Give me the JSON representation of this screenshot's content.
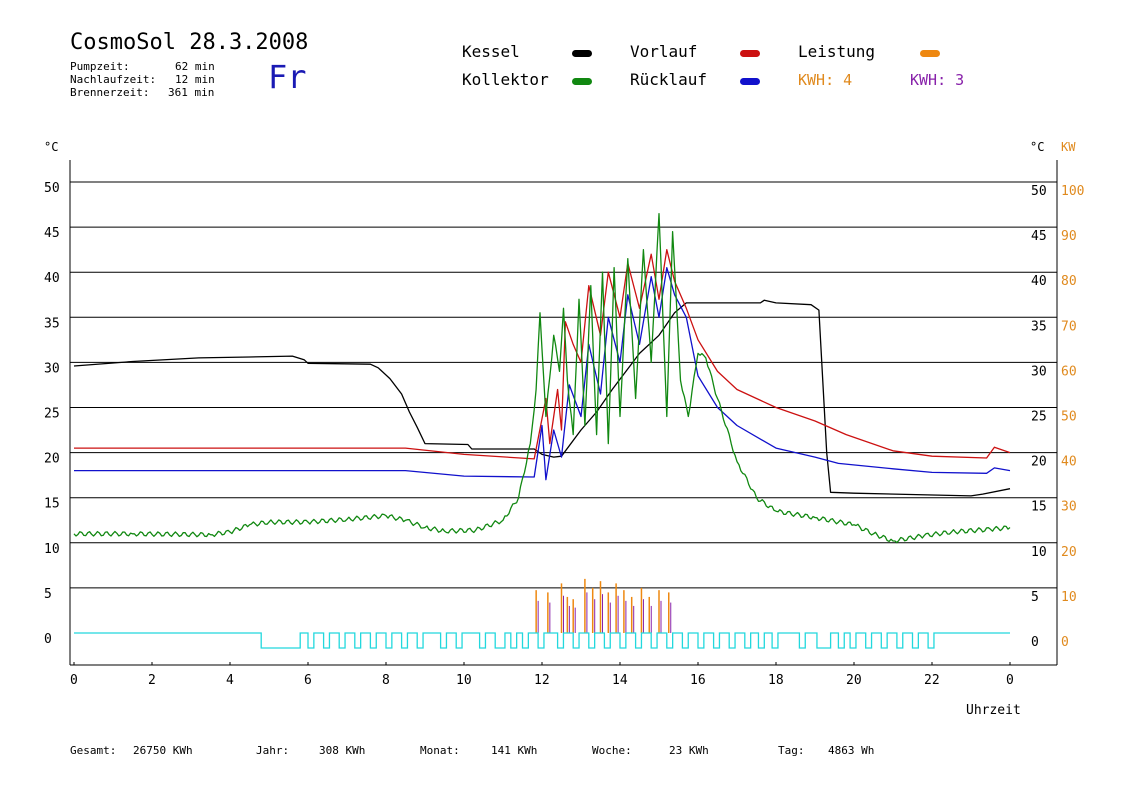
{
  "header": {
    "title": "CosmoSol 28.3.2008",
    "pump_label": "Pumpzeit:",
    "pump_value": "62 min",
    "nachlauf_label": "Nachlaufzeit:",
    "nachlauf_value": "12 min",
    "brenner_label": "Brennerzeit:",
    "brenner_value": "361 min",
    "weekday": "Fr"
  },
  "legend": {
    "kessel": "Kessel",
    "kollektor": "Kollektor",
    "vorlauf": "Vorlauf",
    "ruecklauf": "Rücklauf",
    "leistung": "Leistung",
    "kwh_orange": "KWH: 4",
    "kwh_purple": "KWH: 3"
  },
  "axes": {
    "left_unit": "°C",
    "right_unit": "°C",
    "right_kw_unit": "KW",
    "x_label": "Uhrzeit"
  },
  "footer": {
    "gesamt_label": "Gesamt:",
    "gesamt_value": "26750 KWh",
    "jahr_label": "Jahr:",
    "jahr_value": "308 KWh",
    "monat_label": "Monat:",
    "monat_value": "141 KWh",
    "woche_label": "Woche:",
    "woche_value": "23 KWh",
    "tag_label": "Tag:",
    "tag_value": "4863 Wh"
  },
  "colors": {
    "kessel": "#000000",
    "kollektor": "#118811",
    "vorlauf": "#cc1111",
    "ruecklauf": "#1111cc",
    "leistung": "#ee8811",
    "kwh_purple": "#8822aa",
    "pump": "#22d8dd",
    "kw_axis": "#e08a1e"
  },
  "chart_data": {
    "type": "line",
    "xlabel": "Uhrzeit",
    "ylabel": "°C",
    "xlim": [
      0,
      24
    ],
    "ylim": [
      0,
      50
    ],
    "y2lim": [
      0,
      100
    ],
    "y2label": "KW",
    "x_ticks": [
      "0",
      "2",
      "4",
      "6",
      "8",
      "10",
      "12",
      "14",
      "16",
      "18",
      "20",
      "22",
      "0"
    ],
    "y_ticks": [
      "0",
      "5",
      "10",
      "15",
      "20",
      "25",
      "30",
      "35",
      "40",
      "45",
      "50"
    ],
    "y2_ticks": [
      "0",
      "10",
      "20",
      "30",
      "40",
      "50",
      "60",
      "70",
      "80",
      "90",
      "100"
    ],
    "grid": true,
    "series": [
      {
        "name": "Kessel",
        "color": "#000000",
        "points": [
          [
            0,
            29.6
          ],
          [
            1.5,
            30.1
          ],
          [
            3.2,
            30.5
          ],
          [
            4.5,
            30.6
          ],
          [
            5.6,
            30.7
          ],
          [
            5.9,
            30.3
          ],
          [
            6.0,
            29.9
          ],
          [
            7.6,
            29.8
          ],
          [
            7.8,
            29.4
          ],
          [
            8.1,
            28.2
          ],
          [
            8.4,
            26.5
          ],
          [
            8.6,
            24.5
          ],
          [
            8.8,
            22.8
          ],
          [
            9.0,
            21.0
          ],
          [
            10.1,
            20.9
          ],
          [
            10.2,
            20.4
          ],
          [
            11.8,
            20.4
          ],
          [
            12.0,
            19.8
          ],
          [
            12.3,
            19.5
          ],
          [
            12.5,
            19.6
          ],
          [
            13.0,
            22.5
          ],
          [
            13.4,
            24.5
          ],
          [
            13.8,
            27.0
          ],
          [
            14.5,
            31.0
          ],
          [
            15.0,
            33.0
          ],
          [
            15.4,
            35.5
          ],
          [
            15.7,
            36.6
          ],
          [
            16.5,
            36.6
          ],
          [
            17.6,
            36.6
          ],
          [
            17.7,
            36.9
          ],
          [
            18.0,
            36.6
          ],
          [
            18.9,
            36.4
          ],
          [
            19.1,
            35.8
          ],
          [
            19.3,
            20.0
          ],
          [
            19.4,
            15.6
          ],
          [
            20.0,
            15.5
          ],
          [
            23.0,
            15.2
          ],
          [
            23.3,
            15.4
          ],
          [
            24.0,
            16.0
          ]
        ]
      },
      {
        "name": "Vorlauf",
        "color": "#cc1111",
        "points": [
          [
            0,
            20.5
          ],
          [
            8.5,
            20.5
          ],
          [
            10.0,
            19.8
          ],
          [
            11.8,
            19.3
          ],
          [
            12.1,
            26.0
          ],
          [
            12.2,
            21.0
          ],
          [
            12.4,
            27.0
          ],
          [
            12.5,
            22.5
          ],
          [
            12.6,
            34.5
          ],
          [
            12.8,
            32.0
          ],
          [
            13.0,
            30.0
          ],
          [
            13.2,
            38.5
          ],
          [
            13.5,
            33.0
          ],
          [
            13.7,
            40.0
          ],
          [
            14.0,
            35.0
          ],
          [
            14.2,
            41.0
          ],
          [
            14.5,
            36.0
          ],
          [
            14.8,
            42.0
          ],
          [
            15.0,
            37.0
          ],
          [
            15.2,
            42.5
          ],
          [
            15.4,
            39.0
          ],
          [
            15.7,
            36.0
          ],
          [
            16.0,
            32.5
          ],
          [
            16.5,
            29.0
          ],
          [
            17.0,
            27.0
          ],
          [
            18.0,
            25.0
          ],
          [
            19.0,
            23.5
          ],
          [
            19.8,
            22.0
          ],
          [
            21.0,
            20.2
          ],
          [
            22.0,
            19.6
          ],
          [
            23.4,
            19.4
          ],
          [
            23.6,
            20.6
          ],
          [
            24.0,
            20.0
          ]
        ]
      },
      {
        "name": "Rücklauf",
        "color": "#1111cc",
        "points": [
          [
            0,
            18.0
          ],
          [
            8.5,
            18.0
          ],
          [
            10.0,
            17.4
          ],
          [
            11.8,
            17.3
          ],
          [
            12.0,
            23.0
          ],
          [
            12.1,
            17.0
          ],
          [
            12.3,
            22.5
          ],
          [
            12.5,
            19.5
          ],
          [
            12.7,
            27.5
          ],
          [
            13.0,
            24.0
          ],
          [
            13.2,
            32.0
          ],
          [
            13.5,
            26.5
          ],
          [
            13.7,
            35.0
          ],
          [
            14.0,
            30.0
          ],
          [
            14.2,
            37.5
          ],
          [
            14.5,
            32.0
          ],
          [
            14.8,
            39.5
          ],
          [
            15.0,
            35.0
          ],
          [
            15.2,
            40.5
          ],
          [
            15.4,
            37.5
          ],
          [
            15.7,
            35.0
          ],
          [
            16.0,
            28.5
          ],
          [
            16.5,
            25.0
          ],
          [
            17.0,
            23.0
          ],
          [
            18.0,
            20.5
          ],
          [
            19.0,
            19.5
          ],
          [
            19.6,
            18.8
          ],
          [
            21.0,
            18.2
          ],
          [
            22.0,
            17.8
          ],
          [
            23.4,
            17.7
          ],
          [
            23.6,
            18.3
          ],
          [
            24.0,
            18.0
          ]
        ]
      },
      {
        "name": "Kollektor",
        "color": "#118811",
        "points": [
          [
            0,
            11.0
          ],
          [
            1.5,
            11.0
          ],
          [
            3.5,
            10.9
          ],
          [
            4.0,
            11.2
          ],
          [
            4.5,
            12.0
          ],
          [
            5.0,
            12.3
          ],
          [
            6.0,
            12.3
          ],
          [
            7.0,
            12.6
          ],
          [
            8.0,
            13.0
          ],
          [
            8.5,
            12.5
          ],
          [
            9.0,
            11.7
          ],
          [
            9.5,
            11.3
          ],
          [
            10.3,
            11.4
          ],
          [
            11.0,
            12.5
          ],
          [
            11.4,
            15.0
          ],
          [
            11.7,
            21.0
          ],
          [
            11.85,
            27.0
          ],
          [
            11.95,
            35.5
          ],
          [
            12.1,
            24.0
          ],
          [
            12.3,
            33.0
          ],
          [
            12.45,
            29.0
          ],
          [
            12.55,
            36.0
          ],
          [
            12.65,
            28.0
          ],
          [
            12.8,
            22.0
          ],
          [
            12.95,
            37.0
          ],
          [
            13.1,
            23.0
          ],
          [
            13.25,
            38.5
          ],
          [
            13.4,
            22.0
          ],
          [
            13.55,
            40.0
          ],
          [
            13.7,
            21.0
          ],
          [
            13.85,
            40.5
          ],
          [
            14.0,
            24.0
          ],
          [
            14.2,
            41.5
          ],
          [
            14.4,
            26.0
          ],
          [
            14.6,
            42.5
          ],
          [
            14.8,
            30.0
          ],
          [
            15.0,
            46.5
          ],
          [
            15.2,
            24.0
          ],
          [
            15.35,
            44.5
          ],
          [
            15.55,
            28.0
          ],
          [
            15.75,
            24.0
          ],
          [
            16.0,
            31.0
          ],
          [
            16.2,
            30.5
          ],
          [
            16.5,
            26.0
          ],
          [
            17.0,
            19.0
          ],
          [
            17.5,
            15.0
          ],
          [
            18.0,
            13.5
          ],
          [
            19.0,
            12.8
          ],
          [
            20.0,
            12.0
          ],
          [
            20.5,
            11.0
          ],
          [
            21.0,
            10.2
          ],
          [
            21.8,
            10.8
          ],
          [
            22.5,
            11.2
          ],
          [
            23.5,
            11.5
          ],
          [
            24.0,
            11.7
          ]
        ]
      }
    ],
    "leistung_bars": [
      [
        11.85,
        9.5
      ],
      [
        12.15,
        9.0
      ],
      [
        12.5,
        11.0
      ],
      [
        12.65,
        8.0
      ],
      [
        12.8,
        7.5
      ],
      [
        13.1,
        12.0
      ],
      [
        13.3,
        10.0
      ],
      [
        13.5,
        11.5
      ],
      [
        13.7,
        9.0
      ],
      [
        13.9,
        11.0
      ],
      [
        14.1,
        9.5
      ],
      [
        14.3,
        8.0
      ],
      [
        14.55,
        10.0
      ],
      [
        14.75,
        8.0
      ],
      [
        15.0,
        9.5
      ],
      [
        15.25,
        9.0
      ]
    ],
    "pump_active": [
      [
        4.8,
        5.8
      ],
      [
        6.0,
        6.15
      ],
      [
        6.4,
        6.55
      ],
      [
        6.8,
        6.95
      ],
      [
        7.2,
        7.35
      ],
      [
        7.6,
        7.75
      ],
      [
        8.0,
        8.15
      ],
      [
        8.4,
        8.55
      ],
      [
        8.8,
        8.95
      ],
      [
        9.4,
        9.55
      ],
      [
        9.8,
        9.95
      ],
      [
        10.4,
        10.55
      ],
      [
        10.8,
        11.05
      ],
      [
        11.2,
        11.35
      ],
      [
        11.5,
        11.65
      ],
      [
        11.9,
        12.05
      ],
      [
        12.4,
        12.55
      ],
      [
        12.8,
        12.95
      ],
      [
        13.2,
        13.35
      ],
      [
        13.6,
        13.75
      ],
      [
        14.0,
        14.15
      ],
      [
        14.4,
        14.55
      ],
      [
        14.8,
        14.95
      ],
      [
        15.2,
        15.35
      ],
      [
        15.6,
        15.75
      ],
      [
        16.0,
        16.15
      ],
      [
        16.4,
        16.55
      ],
      [
        16.8,
        16.95
      ],
      [
        17.2,
        17.35
      ],
      [
        17.55,
        17.7
      ],
      [
        17.9,
        18.05
      ],
      [
        18.6,
        18.75
      ],
      [
        19.05,
        19.4
      ],
      [
        19.6,
        19.75
      ],
      [
        19.9,
        20.05
      ],
      [
        20.3,
        20.45
      ],
      [
        20.7,
        20.85
      ],
      [
        21.1,
        21.25
      ],
      [
        21.5,
        21.65
      ],
      [
        21.9,
        22.05
      ]
    ]
  }
}
